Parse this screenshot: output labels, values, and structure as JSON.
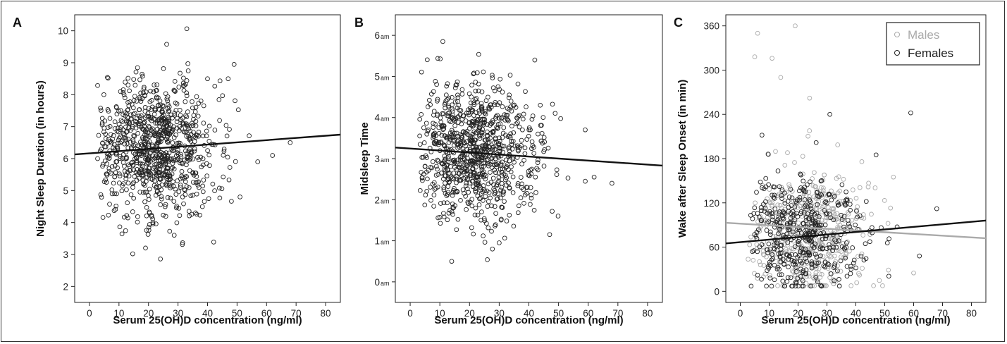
{
  "colors": {
    "point_dark": "#222222",
    "point_light": "#aaaaaa",
    "fit_dark": "#111111",
    "fit_light": "#aaaaaa"
  },
  "chart_data": [
    {
      "panel": "A",
      "type": "scatter",
      "xlabel": "Serum 25(OH)D concentration (ng/ml)",
      "ylabel": "Night Sleep Duration (in hours)",
      "xlim": [
        -5,
        85
      ],
      "ylim": [
        1.5,
        10.5
      ],
      "xticks": [
        0,
        10,
        20,
        30,
        40,
        50,
        60,
        70,
        80
      ],
      "yticks": [
        2,
        3,
        4,
        5,
        6,
        7,
        8,
        9,
        10
      ],
      "ytick_labels": [
        "2",
        "3",
        "4",
        "5",
        "6",
        "7",
        "8",
        "9",
        "10"
      ],
      "n_points_approx": 900,
      "point_distribution": {
        "x_mean": 20,
        "x_sd": 10,
        "y_mean": 6.3,
        "y_sd": 1.05,
        "seed": 11
      },
      "outliers": [
        [
          68,
          6.5
        ],
        [
          62,
          6.1
        ],
        [
          57,
          5.9
        ],
        [
          51,
          4.8
        ],
        [
          47,
          8.5
        ],
        [
          40,
          8.5
        ],
        [
          19,
          3.2
        ]
      ],
      "series": [
        {
          "name": "",
          "color": "#222222",
          "fit_line": {
            "x": [
              -5,
              85
            ],
            "y": [
              6.13,
              6.75
            ]
          }
        }
      ]
    },
    {
      "panel": "B",
      "type": "scatter",
      "xlabel": "Serum 25(OH)D concentration (ng/ml)",
      "ylabel": "Midsleep Time",
      "xlim": [
        -5,
        85
      ],
      "ylim": [
        -0.5,
        6.5
      ],
      "xticks": [
        0,
        10,
        20,
        30,
        40,
        50,
        60,
        70,
        80
      ],
      "yticks": [
        0,
        1,
        2,
        3,
        4,
        5,
        6
      ],
      "ytick_labels": [
        [
          "0",
          "am"
        ],
        [
          "1",
          "am"
        ],
        [
          "2",
          "am"
        ],
        [
          "3",
          "am"
        ],
        [
          "4",
          "am"
        ],
        [
          "5",
          "am"
        ],
        [
          "6",
          "am"
        ]
      ],
      "n_points_approx": 900,
      "point_distribution": {
        "x_mean": 20,
        "x_sd": 10,
        "y_mean": 3.15,
        "y_sd": 0.8,
        "seed": 23
      },
      "outliers": [
        [
          68,
          2.4
        ],
        [
          62,
          2.55
        ],
        [
          59,
          3.7
        ],
        [
          59,
          2.45
        ],
        [
          47,
          1.15
        ],
        [
          30,
          0.95
        ],
        [
          14,
          0.5
        ],
        [
          11,
          5.85
        ],
        [
          42,
          5.4
        ]
      ],
      "series": [
        {
          "name": "",
          "color": "#222222",
          "fit_line": {
            "x": [
              -5,
              85
            ],
            "y": [
              3.27,
              2.83
            ]
          }
        }
      ]
    },
    {
      "panel": "C",
      "type": "scatter",
      "xlabel": "Serum 25(OH)D concentration (ng/ml)",
      "ylabel": "Wake after Sleep Onset (in min)",
      "xlim": [
        -5,
        85
      ],
      "ylim": [
        -15,
        375
      ],
      "xticks": [
        0,
        10,
        20,
        30,
        40,
        50,
        60,
        70,
        80
      ],
      "yticks": [
        0,
        60,
        120,
        180,
        240,
        300,
        360
      ],
      "ytick_labels": [
        "0",
        "60",
        "120",
        "180",
        "240",
        "300",
        "360"
      ],
      "legend": {
        "position": "top-right"
      },
      "series": [
        {
          "name": "Males",
          "color": "#aaaaaa",
          "n_points_approx": 450,
          "point_distribution": {
            "x_mean": 22,
            "x_sd": 10,
            "y_mean": 80,
            "y_sd": 45,
            "seed": 37
          },
          "outliers": [
            [
              6,
              350
            ],
            [
              19,
              360
            ],
            [
              5,
              318
            ],
            [
              11,
              316
            ],
            [
              14,
              290
            ],
            [
              24,
              262
            ],
            [
              60,
              25
            ],
            [
              53,
              155
            ]
          ],
          "fit_line": {
            "x": [
              -5,
              85
            ],
            "y": [
              93,
              72
            ]
          }
        },
        {
          "name": "Females",
          "color": "#222222",
          "n_points_approx": 450,
          "point_distribution": {
            "x_mean": 19,
            "x_sd": 10,
            "y_mean": 75,
            "y_sd": 42,
            "seed": 53
          },
          "outliers": [
            [
              59,
              242
            ],
            [
              68,
              112
            ],
            [
              62,
              48
            ],
            [
              31,
              240
            ],
            [
              47,
              185
            ]
          ],
          "fit_line": {
            "x": [
              -5,
              85
            ],
            "y": [
              65,
              96
            ]
          }
        }
      ]
    }
  ]
}
